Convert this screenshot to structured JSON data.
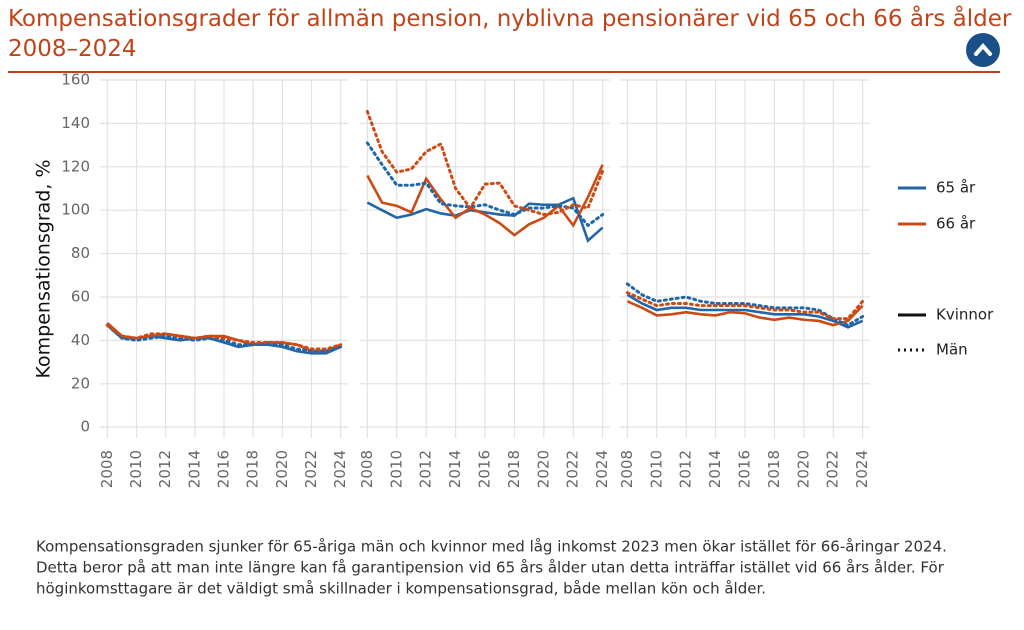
{
  "header": {
    "title": "Kompensationsgrader för allmän pension, nyblivna pensionärer vid 65 och 66 års ålder 2008–2024"
  },
  "legend": {
    "colors": [
      {
        "label": "65 år",
        "color": "#2166a8"
      },
      {
        "label": "66 år",
        "color": "#cc4a14"
      }
    ],
    "styles": [
      {
        "label": "Kvinnor",
        "dash": "solid"
      },
      {
        "label": "Män",
        "dash": "dotted"
      }
    ]
  },
  "chart_data": [
    {
      "type": "line",
      "ylabel": "Kompensationsgrad, %",
      "grid": true,
      "x": [
        2008,
        2009,
        2010,
        2011,
        2012,
        2013,
        2014,
        2015,
        2016,
        2017,
        2018,
        2019,
        2020,
        2021,
        2022,
        2023,
        2024
      ],
      "xlim": [
        2007.5,
        2024.5
      ],
      "xticks": [
        2008,
        2010,
        2012,
        2014,
        2016,
        2018,
        2020,
        2022,
        2024
      ],
      "ylim": [
        -5,
        160
      ],
      "yticks": [
        0,
        20,
        40,
        60,
        80,
        100,
        120,
        140,
        160
      ],
      "series": [
        {
          "color": "#2166a8",
          "dash": "solid",
          "values": [
            47,
            41,
            41,
            42,
            41,
            40,
            41,
            41,
            39,
            37,
            38,
            38,
            37,
            35,
            34,
            34,
            37
          ]
        },
        {
          "color": "#cc4a14",
          "dash": "solid",
          "values": [
            48,
            42,
            41,
            42,
            43,
            42,
            41,
            42,
            42,
            40,
            38,
            39,
            39,
            38,
            35,
            35,
            38
          ]
        },
        {
          "color": "#2166a8",
          "dash": "dotted",
          "values": [
            47,
            41,
            40,
            41,
            42,
            41,
            40,
            41,
            40,
            38,
            38,
            39,
            38,
            36,
            35,
            35,
            37
          ]
        },
        {
          "color": "#cc4a14",
          "dash": "dotted",
          "values": [
            47,
            42,
            41,
            43,
            43,
            42,
            41,
            42,
            41,
            40,
            39,
            39,
            39,
            38,
            36,
            36,
            38
          ]
        }
      ]
    },
    {
      "type": "line",
      "grid": true,
      "x": [
        2008,
        2009,
        2010,
        2011,
        2012,
        2013,
        2014,
        2015,
        2016,
        2017,
        2018,
        2019,
        2020,
        2021,
        2022,
        2023,
        2024
      ],
      "xlim": [
        2007.5,
        2024.5
      ],
      "xticks": [
        2008,
        2010,
        2012,
        2014,
        2016,
        2018,
        2020,
        2022,
        2024
      ],
      "ylim": [
        -5,
        160
      ],
      "yticks": [
        0,
        20,
        40,
        60,
        80,
        100,
        120,
        140,
        160
      ],
      "series": [
        {
          "color": "#2166a8",
          "dash": "solid",
          "values": [
            103.5,
            100,
            96.5,
            98,
            100.5,
            98.5,
            97.5,
            100,
            99,
            98,
            97.5,
            103,
            102.5,
            102.5,
            105.5,
            86,
            92
          ]
        },
        {
          "color": "#cc4a14",
          "dash": "solid",
          "values": [
            116,
            103.5,
            102,
            99,
            114.5,
            105,
            96.5,
            101,
            98,
            94,
            88.5,
            93.5,
            96.5,
            102,
            93,
            106,
            121
          ]
        },
        {
          "color": "#2166a8",
          "dash": "dotted",
          "values": [
            131,
            121,
            111.5,
            111.5,
            112.5,
            103,
            102,
            101.5,
            102.5,
            100,
            98,
            101,
            101,
            102,
            101,
            93,
            98
          ]
        },
        {
          "color": "#cc4a14",
          "dash": "dotted",
          "values": [
            145.5,
            127,
            117.5,
            119,
            127,
            130.5,
            110,
            101,
            112,
            112.5,
            102,
            100,
            98,
            99,
            102.5,
            101,
            118
          ]
        }
      ]
    },
    {
      "type": "line",
      "grid": true,
      "x": [
        2008,
        2009,
        2010,
        2011,
        2012,
        2013,
        2014,
        2015,
        2016,
        2017,
        2018,
        2019,
        2020,
        2021,
        2022,
        2023,
        2024
      ],
      "xlim": [
        2007.5,
        2024.5
      ],
      "xticks": [
        2008,
        2010,
        2012,
        2014,
        2016,
        2018,
        2020,
        2022,
        2024
      ],
      "ylim": [
        -5,
        160
      ],
      "yticks": [
        0,
        20,
        40,
        60,
        80,
        100,
        120,
        140,
        160
      ],
      "series": [
        {
          "color": "#2166a8",
          "dash": "solid",
          "values": [
            61,
            57,
            54,
            55,
            55,
            54,
            54,
            54,
            54,
            53,
            52,
            52,
            52,
            51,
            49,
            46,
            49
          ]
        },
        {
          "color": "#cc4a14",
          "dash": "solid",
          "values": [
            58,
            55,
            51.5,
            52,
            53,
            52,
            51.5,
            53,
            52.5,
            50.5,
            49.5,
            50.5,
            49.5,
            49,
            47,
            49,
            56
          ]
        },
        {
          "color": "#2166a8",
          "dash": "dotted",
          "values": [
            66,
            61,
            58,
            59,
            60,
            58,
            57,
            57,
            57,
            56,
            55,
            55,
            55,
            54,
            50,
            47,
            51
          ]
        },
        {
          "color": "#cc4a14",
          "dash": "dotted",
          "values": [
            62,
            59,
            56,
            57,
            57,
            56,
            56,
            56,
            56,
            55,
            54,
            54,
            53,
            53,
            50,
            50,
            58
          ]
        }
      ]
    }
  ],
  "caption": {
    "lines": [
      "Kompensationsgraden sjunker för 65-åriga män och kvinnor med låg inkomst 2023 men ökar istället för 66-åringar 2024.",
      "Detta beror på att man inte längre kan få garantipension vid 65 års ålder utan detta inträffar istället vid 66 års ålder. För",
      "höginkomsttagare är det väldigt små skillnader i kompensationsgrad, både mellan kön och ålder."
    ]
  }
}
